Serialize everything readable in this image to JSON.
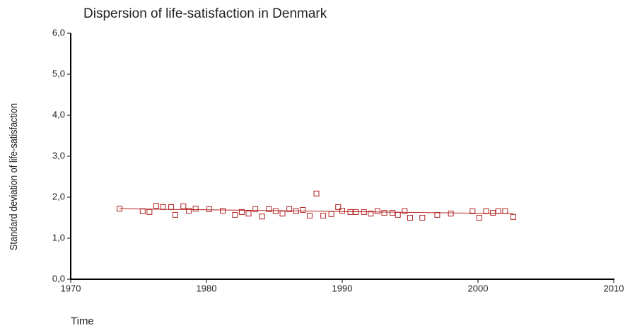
{
  "chart_data": {
    "type": "scatter",
    "title": "Dispersion of life-satisfaction in Denmark",
    "xlabel": "Time",
    "ylabel": "Standard deviation of life-satisfaction",
    "xlim": [
      1970,
      2010
    ],
    "xticks": [
      1970,
      1980,
      1990,
      2000,
      2010
    ],
    "ylim": [
      0,
      6
    ],
    "yticks": [
      {
        "value": 0,
        "label": "0,0"
      },
      {
        "value": 1,
        "label": "1,0"
      },
      {
        "value": 2,
        "label": "2,0"
      },
      {
        "value": 3,
        "label": "3,0"
      },
      {
        "value": 4,
        "label": "4,0"
      },
      {
        "value": 5,
        "label": "5,0"
      },
      {
        "value": 6,
        "label": "6,0"
      }
    ],
    "color": "#b22222",
    "x": [
      1973.6,
      1975.3,
      1975.8,
      1976.3,
      1976.8,
      1977.4,
      1977.7,
      1978.3,
      1978.7,
      1979.2,
      1980.2,
      1981.2,
      1982.1,
      1982.6,
      1983.1,
      1983.6,
      1984.1,
      1984.6,
      1985.1,
      1985.6,
      1986.1,
      1986.6,
      1987.1,
      1987.6,
      1988.1,
      1988.6,
      1989.2,
      1989.7,
      1990.0,
      1990.6,
      1991.0,
      1991.6,
      1992.1,
      1992.6,
      1993.1,
      1993.7,
      1994.1,
      1994.6,
      1995.0,
      1995.9,
      1997.0,
      1998.0,
      1999.6,
      2000.1,
      2000.6,
      2001.1,
      2001.5,
      2002.0,
      2002.6
    ],
    "values": [
      1.72,
      1.66,
      1.64,
      1.79,
      1.76,
      1.76,
      1.57,
      1.78,
      1.67,
      1.72,
      1.71,
      1.67,
      1.57,
      1.64,
      1.6,
      1.71,
      1.53,
      1.71,
      1.66,
      1.6,
      1.71,
      1.66,
      1.69,
      1.55,
      2.09,
      1.55,
      1.59,
      1.76,
      1.67,
      1.64,
      1.64,
      1.64,
      1.6,
      1.66,
      1.62,
      1.62,
      1.57,
      1.66,
      1.5,
      1.5,
      1.57,
      1.6,
      1.66,
      1.5,
      1.66,
      1.62,
      1.66,
      1.66,
      1.52
    ],
    "trend": {
      "x": [
        1973.6,
        2002.6
      ],
      "values": [
        1.72,
        1.6
      ]
    }
  }
}
